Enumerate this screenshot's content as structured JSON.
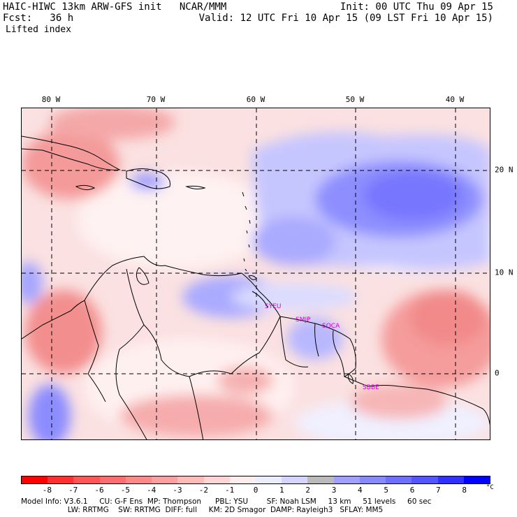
{
  "header": {
    "title": "HAIC-HIWC 13km ARW-GFS init   NCAR/MMM",
    "init": "Init: 00 UTC Thu 09 Apr 15",
    "fcst": "Fcst:   36 h",
    "valid": "Valid: 12 UTC Fri 10 Apr 15 (09 LST Fri 10 Apr 15)",
    "field": "Lifted index"
  },
  "map": {
    "longitude_labels": [
      "80 W",
      "70 W",
      "60 W",
      "50 W",
      "40 W"
    ],
    "latitude_labels": [
      "20 N",
      "10 N",
      "0"
    ],
    "stations": [
      "SYEU",
      "SMJP",
      "SOCA",
      "SBBE"
    ]
  },
  "colorbar": {
    "labels": [
      "-8",
      "-7",
      "-6",
      "-5",
      "-4",
      "-3",
      "-2",
      "-1",
      "0",
      "1",
      "2",
      "3",
      "4",
      "5",
      "6",
      "7",
      "8"
    ],
    "unit": "°C",
    "colors": [
      "#ff0000",
      "#ff3030",
      "#ff5555",
      "#ff6e6e",
      "#ff8888",
      "#ffa0a0",
      "#ffbaba",
      "#ffd4d4",
      "#ffecec",
      "#ececff",
      "#d4d4ff",
      "#bababa",
      "#a0a0ff",
      "#8888ff",
      "#6e6eff",
      "#5555ff",
      "#3030ff",
      "#0000ff"
    ]
  },
  "footer": {
    "line1": "Model Info: V3.6.1     CU: G-F Ens  MP: Thompson      PBL: YSU        SF: Noah LSM     13 km     51 levels     60 sec",
    "line2": "                    LW: RRTMG    SW: RRTMG  DIFF: full     KM: 2D Smagor  DAMP: Rayleigh3   SFLAY: MM5"
  }
}
